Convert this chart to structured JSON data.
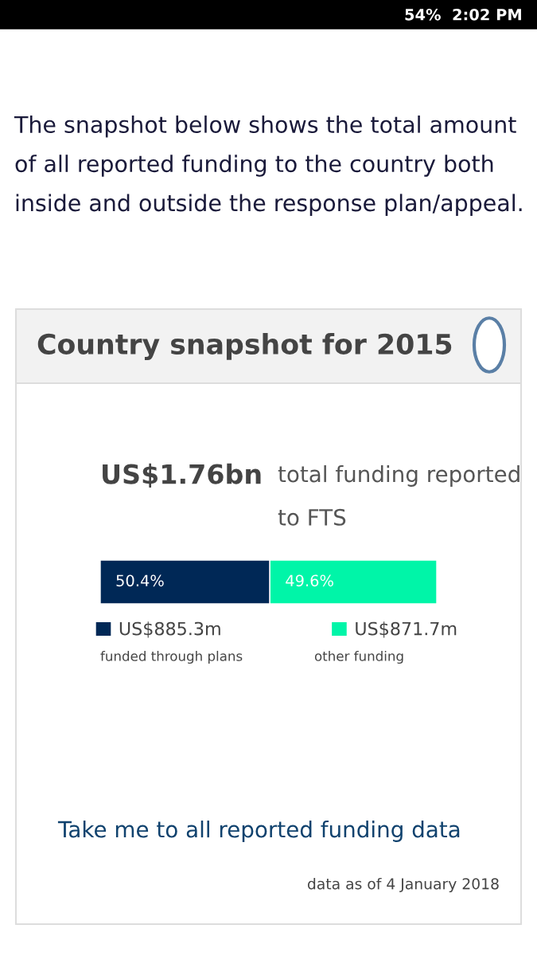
{
  "chart_data": {
    "type": "bar",
    "orientation": "horizontal",
    "stacked": true,
    "title": "Country snapshot for 2015",
    "categories": [
      null
    ],
    "series": [
      {
        "name": "US$885.3m",
        "color": "#002856",
        "values": [
          50.4
        ],
        "value_labels": [
          "50.4%"
        ]
      },
      {
        "name": "US$871.7m",
        "color": "#00f5a8",
        "values": [
          49.6
        ],
        "value_labels": [
          "49.6%"
        ]
      }
    ],
    "xlim": [
      0,
      100
    ],
    "tick_labels": false,
    "legend": "bottom",
    "annotations": [
      "The snapshot below shows the total amount of all reported funding to the country both inside and outside the response plan/appeal.",
      "US$1.76bn",
      "total funding reported to FTS",
      "funded through plans",
      "other funding",
      "Take me to all reported funding data",
      "data as of 4 January 2018",
      "54%",
      "2:02 PM"
    ]
  }
}
